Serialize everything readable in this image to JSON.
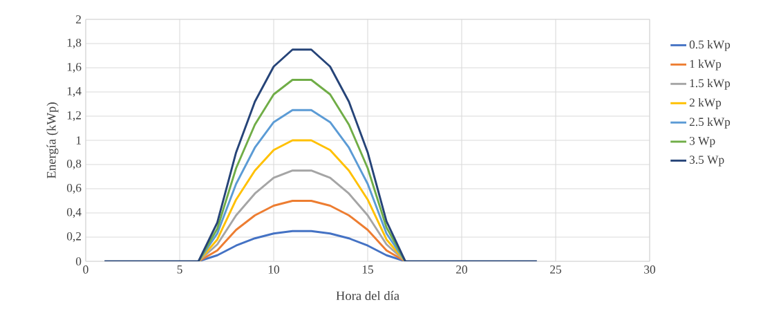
{
  "chart_data": {
    "type": "line",
    "xlabel": "Hora del día",
    "ylabel": "Energía  (kWp)",
    "x": [
      1,
      2,
      3,
      4,
      5,
      6,
      7,
      8,
      9,
      10,
      11,
      12,
      13,
      14,
      15,
      16,
      17,
      18,
      19,
      20,
      21,
      22,
      23,
      24
    ],
    "series": [
      {
        "name": "0.5 kWp",
        "color": "#4472c4",
        "values": [
          null,
          null,
          null,
          null,
          null,
          0,
          0.05,
          0.13,
          0.19,
          0.23,
          0.25,
          0.25,
          0.23,
          0.19,
          0.13,
          0.05,
          0,
          null,
          null,
          null,
          null,
          null,
          null,
          null
        ]
      },
      {
        "name": "1 kWp",
        "color": "#ed7d31",
        "values": [
          null,
          null,
          null,
          null,
          null,
          0,
          0.09,
          0.26,
          0.38,
          0.46,
          0.5,
          0.5,
          0.46,
          0.38,
          0.26,
          0.09,
          0,
          null,
          null,
          null,
          null,
          null,
          null,
          null
        ]
      },
      {
        "name": "1.5 kWp",
        "color": "#a5a5a5",
        "values": [
          null,
          null,
          null,
          null,
          null,
          0,
          0.14,
          0.38,
          0.56,
          0.69,
          0.75,
          0.75,
          0.69,
          0.56,
          0.38,
          0.14,
          0,
          null,
          null,
          null,
          null,
          null,
          null,
          null
        ]
      },
      {
        "name": "2 kWp",
        "color": "#ffc000",
        "values": [
          null,
          null,
          null,
          null,
          null,
          0,
          0.18,
          0.51,
          0.75,
          0.92,
          1,
          1,
          0.92,
          0.75,
          0.51,
          0.18,
          0,
          null,
          null,
          null,
          null,
          null,
          null,
          null
        ]
      },
      {
        "name": "2.5 kWp",
        "color": "#5b9bd5",
        "values": [
          null,
          null,
          null,
          null,
          null,
          0,
          0.23,
          0.64,
          0.94,
          1.15,
          1.25,
          1.25,
          1.15,
          0.94,
          0.64,
          0.23,
          0,
          null,
          null,
          null,
          null,
          null,
          null,
          null
        ]
      },
      {
        "name": "3 Wp",
        "color": "#70ad47",
        "values": [
          null,
          null,
          null,
          null,
          null,
          0,
          0.27,
          0.77,
          1.13,
          1.38,
          1.5,
          1.5,
          1.38,
          1.13,
          0.77,
          0.28,
          0,
          null,
          null,
          null,
          null,
          null,
          null,
          null
        ]
      },
      {
        "name": "3.5 Wp",
        "color": "#264478",
        "values": [
          0,
          0,
          0,
          0,
          0,
          0,
          0.32,
          0.9,
          1.32,
          1.61,
          1.75,
          1.75,
          1.61,
          1.32,
          0.9,
          0.33,
          0,
          0,
          0,
          0,
          0,
          0,
          0,
          0
        ]
      }
    ],
    "xlim": [
      0,
      30
    ],
    "xticks": [
      0,
      5,
      10,
      15,
      20,
      25,
      30
    ],
    "ylim": [
      0,
      2
    ],
    "yticks": [
      0,
      {
        "value": 0.2,
        "label": "0,2"
      },
      {
        "value": 0.4,
        "label": "0,4"
      },
      {
        "value": 0.6,
        "label": "0,6"
      },
      {
        "value": 0.8,
        "label": "0,8"
      },
      1,
      {
        "value": 1.2,
        "label": "1,2"
      },
      {
        "value": 1.4,
        "label": "1,4"
      },
      {
        "value": 1.6,
        "label": "1,6"
      },
      {
        "value": 1.8,
        "label": "1,8"
      },
      2
    ],
    "grid": true,
    "legend": "right",
    "marker": "none",
    "line_style": "solid"
  }
}
